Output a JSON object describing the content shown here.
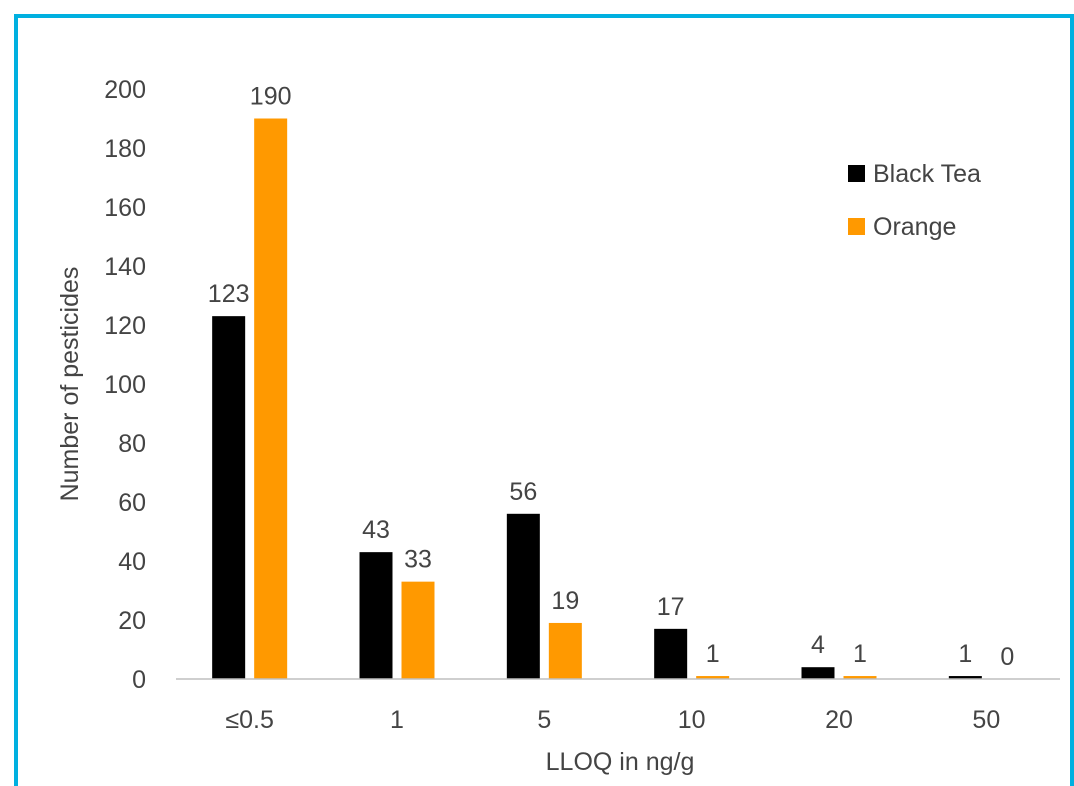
{
  "chart_data": {
    "type": "bar",
    "title": "",
    "xlabel": "LLOQ in ng/g",
    "ylabel": "Number of pesticides",
    "categories": [
      "≤0.5",
      "1",
      "5",
      "10",
      "20",
      "50"
    ],
    "ylim": [
      0,
      200
    ],
    "yticks": [
      0,
      20,
      40,
      60,
      80,
      100,
      120,
      140,
      160,
      180,
      200
    ],
    "grid": false,
    "legend_position": "top-right",
    "series": [
      {
        "name": "Black Tea",
        "color": "#000000",
        "values": [
          123,
          43,
          56,
          17,
          4,
          1
        ]
      },
      {
        "name": "Orange",
        "color": "#FF9900",
        "values": [
          190,
          33,
          19,
          1,
          1,
          0
        ]
      }
    ],
    "data_labels": true
  },
  "style": {
    "border_color": "#00B0E0",
    "axis_color": "#BFBFBF",
    "text_color": "#444444"
  }
}
